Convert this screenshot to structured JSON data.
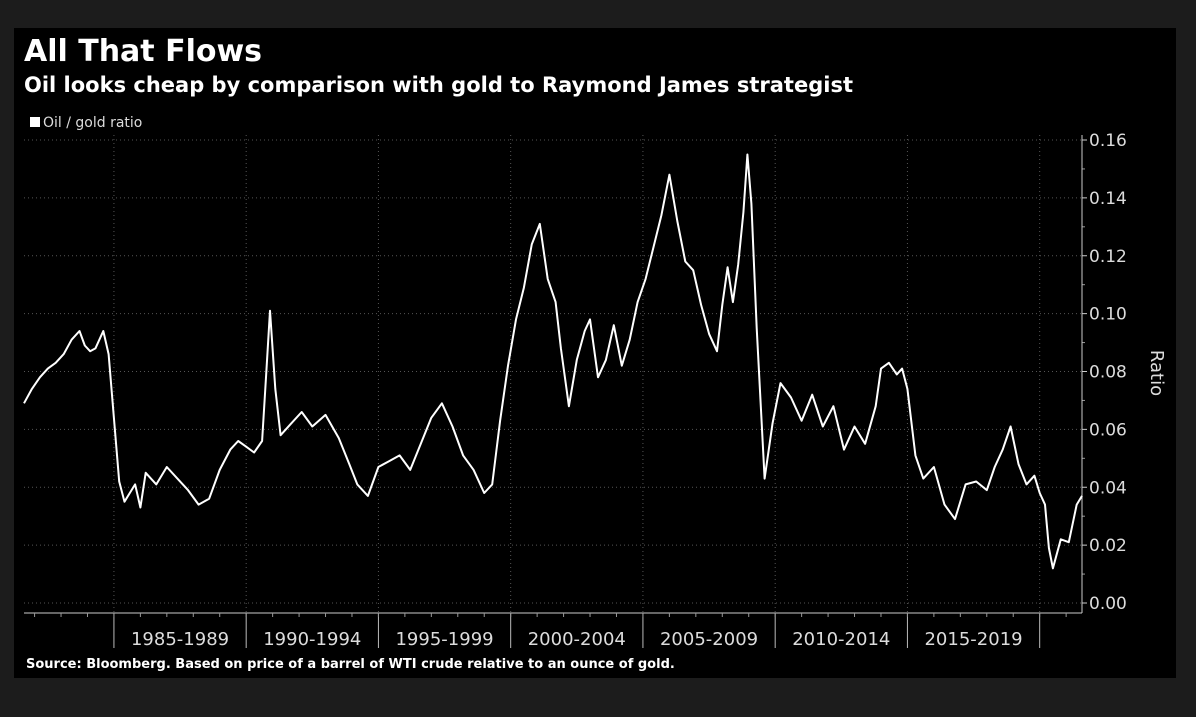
{
  "chart_data": {
    "type": "line",
    "title": "All That Flows",
    "subtitle": "Oil looks cheap by comparison with gold to Raymond James strategist",
    "ylabel": "Ratio",
    "ylim": [
      0,
      0.16
    ],
    "y_ticks": [
      "0.00",
      "0.02",
      "0.04",
      "0.06",
      "0.08",
      "0.10",
      "0.12",
      "0.14",
      "0.16"
    ],
    "x_range": [
      1981.6,
      2021.6
    ],
    "x_category_labels": [
      "1985-1989",
      "1990-1994",
      "1995-1999",
      "2000-2004",
      "2005-2009",
      "2010-2014",
      "2015-2019"
    ],
    "legend": {
      "position": "top-left",
      "entries": [
        "Oil / gold ratio"
      ]
    },
    "grid": true,
    "source": "Source: Bloomberg. Based on price of a barrel of WTI crude relative to an ounce of gold.",
    "colors": {
      "line": "#ffffff",
      "background": "#000000",
      "grid": "#555555"
    },
    "series": [
      {
        "name": "Oil / gold ratio",
        "x": [
          1981.6,
          1981.9,
          1982.2,
          1982.5,
          1982.8,
          1983.1,
          1983.4,
          1983.7,
          1983.9,
          1984.1,
          1984.3,
          1984.6,
          1984.8,
          1985.0,
          1985.2,
          1985.4,
          1985.6,
          1985.8,
          1986.0,
          1986.2,
          1986.6,
          1987.0,
          1987.4,
          1987.8,
          1988.2,
          1988.6,
          1989.0,
          1989.4,
          1989.7,
          1990.0,
          1990.3,
          1990.6,
          1990.75,
          1990.9,
          1991.1,
          1991.3,
          1991.7,
          1992.1,
          1992.5,
          1993.0,
          1993.5,
          1993.9,
          1994.2,
          1994.6,
          1995.0,
          1995.4,
          1995.8,
          1996.2,
          1996.6,
          1997.0,
          1997.4,
          1997.8,
          1998.2,
          1998.6,
          1999.0,
          1999.3,
          1999.6,
          1999.9,
          2000.2,
          2000.5,
          2000.8,
          2001.1,
          2001.4,
          2001.7,
          2001.9,
          2002.2,
          2002.5,
          2002.8,
          2003.0,
          2003.3,
          2003.6,
          2003.9,
          2004.2,
          2004.5,
          2004.8,
          2005.1,
          2005.4,
          2005.7,
          2006.0,
          2006.3,
          2006.6,
          2006.9,
          2007.2,
          2007.5,
          2007.8,
          2008.0,
          2008.2,
          2008.4,
          2008.6,
          2008.8,
          2008.95,
          2009.1,
          2009.3,
          2009.6,
          2009.9,
          2010.2,
          2010.6,
          2011.0,
          2011.4,
          2011.8,
          2012.2,
          2012.6,
          2013.0,
          2013.4,
          2013.8,
          2014.0,
          2014.3,
          2014.6,
          2014.8,
          2015.0,
          2015.3,
          2015.6,
          2016.0,
          2016.4,
          2016.8,
          2017.2,
          2017.6,
          2018.0,
          2018.3,
          2018.6,
          2018.9,
          2019.2,
          2019.5,
          2019.8,
          2020.0,
          2020.2,
          2020.35,
          2020.5,
          2020.8,
          2021.1,
          2021.4,
          2021.6
        ],
        "values": [
          0.069,
          0.074,
          0.078,
          0.081,
          0.083,
          0.086,
          0.091,
          0.094,
          0.089,
          0.087,
          0.088,
          0.094,
          0.086,
          0.064,
          0.042,
          0.035,
          0.038,
          0.041,
          0.033,
          0.045,
          0.041,
          0.047,
          0.043,
          0.039,
          0.034,
          0.036,
          0.046,
          0.053,
          0.056,
          0.054,
          0.052,
          0.056,
          0.078,
          0.101,
          0.074,
          0.058,
          0.062,
          0.066,
          0.061,
          0.065,
          0.057,
          0.048,
          0.041,
          0.037,
          0.047,
          0.049,
          0.051,
          0.046,
          0.055,
          0.064,
          0.069,
          0.061,
          0.051,
          0.046,
          0.038,
          0.041,
          0.063,
          0.082,
          0.098,
          0.109,
          0.124,
          0.131,
          0.112,
          0.104,
          0.088,
          0.068,
          0.084,
          0.094,
          0.098,
          0.078,
          0.084,
          0.096,
          0.082,
          0.091,
          0.104,
          0.112,
          0.123,
          0.134,
          0.148,
          0.132,
          0.118,
          0.115,
          0.103,
          0.093,
          0.087,
          0.103,
          0.116,
          0.104,
          0.117,
          0.135,
          0.155,
          0.138,
          0.095,
          0.043,
          0.062,
          0.076,
          0.071,
          0.063,
          0.072,
          0.061,
          0.068,
          0.053,
          0.061,
          0.055,
          0.068,
          0.081,
          0.083,
          0.079,
          0.081,
          0.074,
          0.051,
          0.043,
          0.047,
          0.034,
          0.029,
          0.041,
          0.042,
          0.039,
          0.047,
          0.053,
          0.061,
          0.048,
          0.041,
          0.044,
          0.038,
          0.034,
          0.019,
          0.012,
          0.022,
          0.021,
          0.034,
          0.037
        ]
      }
    ]
  }
}
